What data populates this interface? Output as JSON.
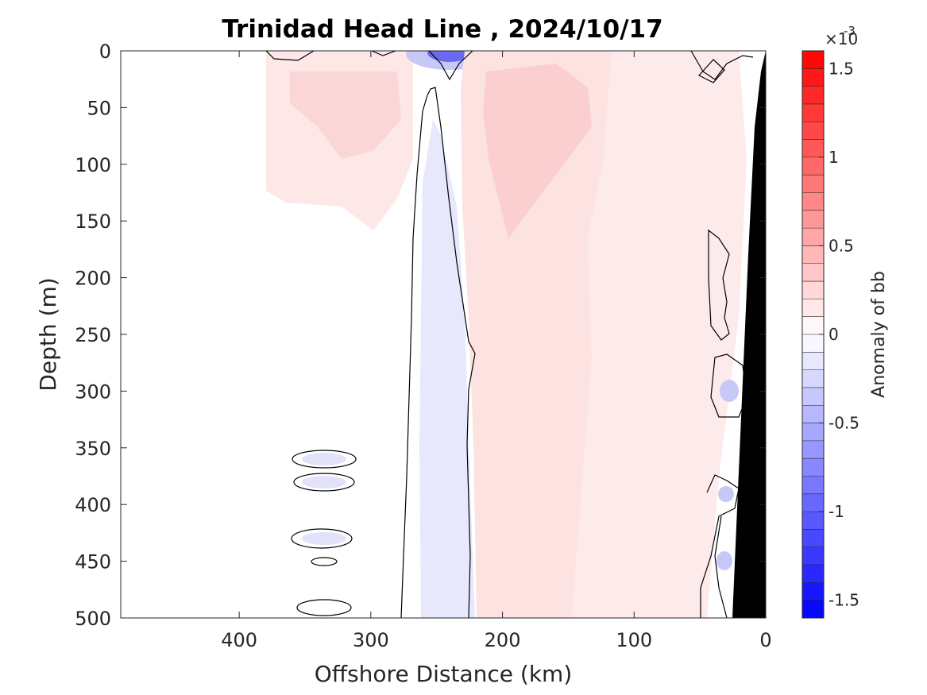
{
  "chart_data": {
    "type": "heatmap",
    "subtype": "filled-contour section",
    "title": "Trinidad Head Line , 2024/10/17",
    "xlabel": "Offshore Distance (km)",
    "ylabel": "Depth (m)",
    "xlim": [
      490,
      0
    ],
    "x_direction": "reversed",
    "ylim": [
      0,
      500
    ],
    "y_direction": "reversed",
    "x_ticks": [
      400,
      300,
      200,
      100,
      0
    ],
    "x_tick_labels": [
      "400",
      "300",
      "200",
      "100",
      "0"
    ],
    "y_ticks": [
      0,
      50,
      100,
      150,
      200,
      250,
      300,
      350,
      400,
      450,
      500
    ],
    "y_tick_labels": [
      "0",
      "50",
      "100",
      "150",
      "200",
      "250",
      "300",
      "350",
      "400",
      "450",
      "500"
    ],
    "grid": false,
    "colorbar": {
      "label": "Anomaly of bb",
      "exponent_base": "×10",
      "exponent_power": "-3",
      "range": [
        -1.6,
        1.6
      ],
      "ticks": [
        1.5,
        1,
        0.5,
        0,
        -0.5,
        -1,
        -1.5
      ],
      "tick_labels": [
        "1.5",
        "1",
        "0.5",
        "0",
        "-0.5",
        "-1",
        "-1.5"
      ],
      "levels": 32,
      "colormap": "blue-white-red",
      "negative_color": "#0000ff",
      "positive_color": "#ff0000",
      "zero_color": "#ffffff"
    },
    "bathymetry_color": "#000000",
    "features": [
      {
        "region": "x 275–225 km, 0–500 m",
        "sign": "negative",
        "approx_value": -0.1
      },
      {
        "region": "x 250–230 km, surface",
        "sign": "negative",
        "approx_value": -1.2
      },
      {
        "region": "x 225–150 km, 0–500 m",
        "sign": "positive",
        "approx_value": 0.2
      },
      {
        "region": "x 380–270 km, 0–250 m",
        "sign": "positive",
        "approx_value": 0.1
      },
      {
        "region": "x 150–40 km, 0–500 m",
        "sign": "positive",
        "approx_value": 0.1
      },
      {
        "region": "x 40–20 km, 280–480 m",
        "sign": "negative",
        "approx_value": -0.2
      }
    ]
  }
}
